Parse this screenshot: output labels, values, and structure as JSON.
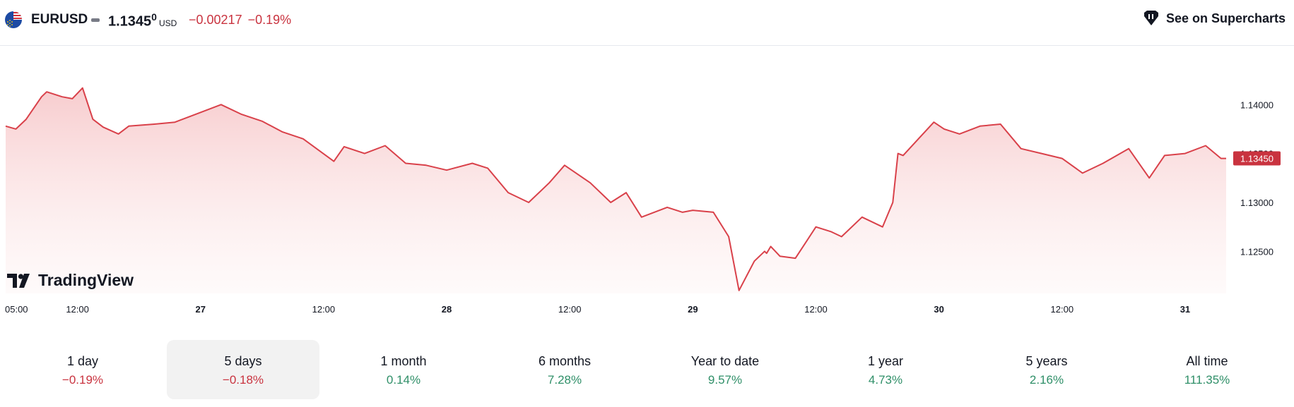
{
  "header": {
    "symbol": "EURUSD",
    "price_main": "1.1345",
    "price_sup": "0",
    "currency": "USD",
    "change_abs": "−0.00217",
    "change_pct": "−0.19%",
    "supercharts_label": "See on Supercharts"
  },
  "brand": {
    "name": "TradingView"
  },
  "colors": {
    "line": "#d9414a",
    "negative": "#c9333f",
    "positive": "#2f8f68",
    "area_top": "#f7c9cb"
  },
  "chart_data": {
    "type": "area",
    "title": "",
    "xlabel": "",
    "ylabel": "",
    "ylim": [
      1.1207,
      1.1442
    ],
    "y_ticks": [
      "1.14000",
      "1.13500",
      "1.13000",
      "1.12500"
    ],
    "y_tick_values": [
      1.14,
      1.135,
      1.13,
      1.125
    ],
    "x_ticks": [
      "05:00",
      "12:00",
      "27",
      "12:00",
      "28",
      "12:00",
      "29",
      "12:00",
      "30",
      "12:00",
      "31"
    ],
    "x_tick_times": [
      0,
      7,
      19,
      31,
      43,
      55,
      67,
      79,
      91,
      103,
      115
    ],
    "x_tick_bold": [
      false,
      false,
      true,
      false,
      true,
      false,
      true,
      false,
      true,
      false,
      true
    ],
    "x_range": [
      0,
      119
    ],
    "last_price_label": "1.13450",
    "last_value": 1.1345,
    "series": [
      {
        "x": [
          0,
          1,
          2,
          3.5,
          4,
          5.5,
          6.5,
          7.5,
          8.5,
          9.5,
          11,
          12,
          14.5,
          16.5,
          18,
          21,
          23,
          25,
          27,
          29,
          32,
          33,
          35,
          37,
          39,
          41,
          43,
          45.5,
          47,
          49,
          51,
          53,
          54.5,
          57,
          59,
          60.5,
          62,
          64.5,
          66,
          67,
          69,
          70.5,
          71.5,
          73,
          74,
          74.2,
          74.6,
          75.5,
          77,
          79,
          80.5,
          81.5,
          83.5,
          85.5,
          86.5,
          87,
          87.5,
          89,
          90.5,
          91.5,
          93,
          95,
          97,
          99,
          101,
          103,
          105,
          107,
          109.5,
          111.5,
          113,
          115,
          117,
          118.5,
          119
        ],
        "y": [
          1.1378,
          1.1375,
          1.1385,
          1.1408,
          1.1413,
          1.1408,
          1.1406,
          1.1417,
          1.1385,
          1.1377,
          1.137,
          1.1378,
          1.138,
          1.1382,
          1.1388,
          1.14,
          1.139,
          1.1383,
          1.1372,
          1.1365,
          1.1342,
          1.1357,
          1.135,
          1.1358,
          1.134,
          1.1338,
          1.1333,
          1.134,
          1.1335,
          1.131,
          1.13,
          1.132,
          1.1338,
          1.132,
          1.13,
          1.131,
          1.1285,
          1.1295,
          1.129,
          1.1292,
          1.129,
          1.1265,
          1.121,
          1.124,
          1.125,
          1.1248,
          1.1255,
          1.1245,
          1.1243,
          1.1275,
          1.127,
          1.1265,
          1.1285,
          1.1275,
          1.13,
          1.135,
          1.1348,
          1.1365,
          1.1382,
          1.1375,
          1.137,
          1.1378,
          1.138,
          1.1355,
          1.135,
          1.1345,
          1.133,
          1.134,
          1.1355,
          1.1325,
          1.1348,
          1.135,
          1.1358,
          1.1345,
          1.1345
        ]
      }
    ]
  },
  "periods": [
    {
      "label": "1 day",
      "value": "−0.19%",
      "sign": "neg"
    },
    {
      "label": "5 days",
      "value": "−0.18%",
      "sign": "neg",
      "active": true
    },
    {
      "label": "1 month",
      "value": "0.14%",
      "sign": "pos"
    },
    {
      "label": "6 months",
      "value": "7.28%",
      "sign": "pos"
    },
    {
      "label": "Year to date",
      "value": "9.57%",
      "sign": "pos"
    },
    {
      "label": "1 year",
      "value": "4.73%",
      "sign": "pos"
    },
    {
      "label": "5 years",
      "value": "2.16%",
      "sign": "pos"
    },
    {
      "label": "All time",
      "value": "111.35%",
      "sign": "pos"
    }
  ]
}
